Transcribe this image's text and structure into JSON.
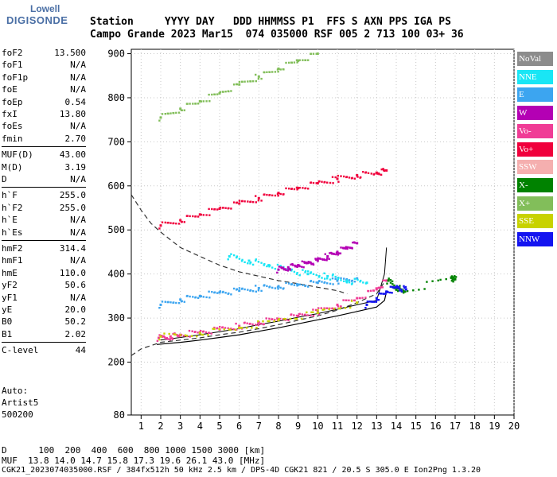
{
  "logo": {
    "brand_top": "Lowell",
    "brand_bottom": "DIGISONDE"
  },
  "header": {
    "line1": "Station     YYYY DAY   DDD HHMMSS P1  FFS S AXN PPS IGA PS",
    "line2": "Campo Grande 2023 Mar15  074 035000 RSF 005 2 713 100 03+ 36"
  },
  "params": [
    {
      "label": "foF2",
      "value": "13.500"
    },
    {
      "label": "foF1",
      "value": "N/A"
    },
    {
      "label": "foF1p",
      "value": "N/A"
    },
    {
      "label": "foE",
      "value": "N/A"
    },
    {
      "label": "foEp",
      "value": "0.54"
    },
    {
      "label": "fxI",
      "value": "13.80"
    },
    {
      "label": "foEs",
      "value": "N/A"
    },
    {
      "label": "fmin",
      "value": "2.70"
    },
    {
      "label": "MUF(D)",
      "value": "43.00"
    },
    {
      "label": "M(D)",
      "value": "3.19"
    },
    {
      "label": "D",
      "value": "N/A"
    },
    {
      "label": "h`F",
      "value": "255.0"
    },
    {
      "label": "h`F2",
      "value": "255.0"
    },
    {
      "label": "h`E",
      "value": "N/A"
    },
    {
      "label": "h`Es",
      "value": "N/A"
    },
    {
      "label": "hmF2",
      "value": "314.4"
    },
    {
      "label": "hmF1",
      "value": "N/A"
    },
    {
      "label": "hmE",
      "value": "110.0"
    },
    {
      "label": "yF2",
      "value": "50.6"
    },
    {
      "label": "yF1",
      "value": "N/A"
    },
    {
      "label": "yE",
      "value": "20.0"
    },
    {
      "label": "B0",
      "value": "50.2"
    },
    {
      "label": "B1",
      "value": "2.02"
    },
    {
      "label": "C-level",
      "value": "44"
    }
  ],
  "auto": {
    "l1": "Auto:",
    "l2": "Artist5",
    "l3": "500200"
  },
  "footer": {
    "d_line": "D      100  200  400  600  800 1000 1500 3000 [km]",
    "muf_line": "MUF  13.8 14.0 14.7 15.8 17.3 19.6 26.1 43.0 [MHz]",
    "file_line": "CGK21_2023074035000.RSF / 384fx512h 50 kHz 2.5 km / DPS-4D CGK21 821 / 20.5 S 305.0 E Ion2Png 1.3.20"
  },
  "legend": [
    {
      "label": "NoVal",
      "color": "#8c8c8c"
    },
    {
      "label": "NNE",
      "color": "#19e6f5"
    },
    {
      "label": "E",
      "color": "#3ca5f0"
    },
    {
      "label": "W",
      "color": "#b400b4"
    },
    {
      "label": "Vo-",
      "color": "#f03c96"
    },
    {
      "label": "Vo+",
      "color": "#f0003c"
    },
    {
      "label": "SSW",
      "color": "#f5afaf"
    },
    {
      "label": "X-",
      "color": "#008200"
    },
    {
      "label": "X+",
      "color": "#82be5a"
    },
    {
      "label": "SSE",
      "color": "#c8d200"
    },
    {
      "label": "NNW",
      "color": "#1414f0"
    }
  ],
  "chart_data": {
    "type": "scatter",
    "title": "",
    "xlabel": "",
    "ylabel": "",
    "xlim": [
      0.5,
      20
    ],
    "ylim": [
      80,
      910
    ],
    "y_ticks": [
      80,
      200,
      300,
      400,
      500,
      600,
      700,
      800,
      900
    ],
    "x_ticks": [
      1,
      2,
      3,
      4,
      5,
      6,
      7,
      8,
      9,
      10,
      11,
      12,
      13,
      14,
      15,
      16,
      17,
      18,
      19,
      20
    ],
    "series": [
      {
        "name": "Vo-",
        "color": "#f03c96",
        "x": [
          1.9,
          2.5,
          3.0,
          4.0,
          5.0,
          6.0,
          7.0,
          8.0,
          9.0,
          10.0,
          11.0,
          12.0,
          13.0,
          13.5
        ],
        "y": [
          255,
          258,
          262,
          268,
          274,
          282,
          290,
          298,
          305,
          315,
          330,
          345,
          365,
          385
        ]
      },
      {
        "name": "E",
        "color": "#3ca5f0",
        "x": [
          2.0,
          3.0,
          4.0,
          5.0,
          6.0,
          7.0,
          8.0,
          9.0,
          10.0,
          11.0,
          12.0
        ],
        "y": [
          330,
          342,
          350,
          358,
          362,
          368,
          372,
          376,
          380,
          385,
          390
        ]
      },
      {
        "name": "NNE",
        "color": "#19e6f5",
        "x": [
          5.5,
          6.5,
          7.5,
          8.5,
          9.5,
          10.5,
          11.5,
          12.5
        ],
        "y": [
          440,
          430,
          420,
          410,
          400,
          395,
          385,
          380
        ]
      },
      {
        "name": "W",
        "color": "#b400b4",
        "x": [
          8.0,
          8.5,
          9.0,
          9.5,
          10.0,
          10.5,
          11.0,
          11.5,
          12.0
        ],
        "y": [
          410,
          415,
          420,
          425,
          430,
          440,
          450,
          460,
          470
        ]
      },
      {
        "name": "X-",
        "color": "#008200",
        "x": [
          13.6,
          14.0,
          14.4,
          16.8,
          17.0
        ],
        "y": [
          385,
          370,
          360,
          392,
          388
        ]
      },
      {
        "name": "NNW",
        "color": "#1414f0",
        "x": [
          12.5,
          13.0,
          13.5,
          14.0,
          14.5
        ],
        "y": [
          330,
          345,
          360,
          370,
          365
        ]
      },
      {
        "name": "SSE",
        "color": "#c8d200",
        "x": [
          2.0,
          4.0,
          6.0,
          8.0,
          10.0,
          12.0
        ],
        "y": [
          258,
          266,
          278,
          295,
          312,
          335
        ]
      },
      {
        "name": "Vo+",
        "color": "#f0003c",
        "x": [
          2.0,
          3.0,
          4.0,
          5.0,
          6.0,
          7.0,
          8.0,
          9.0,
          10.0,
          11.0,
          12.0,
          13.0,
          13.5
        ],
        "y": [
          510,
          522,
          535,
          548,
          560,
          572,
          584,
          595,
          606,
          616,
          624,
          630,
          635
        ]
      },
      {
        "name": "X+",
        "color": "#82be5a",
        "x": [
          2.0,
          3.0,
          4.0,
          5.0,
          6.0,
          7.0,
          8.0,
          9.0,
          10.0
        ],
        "y": [
          755,
          775,
          792,
          810,
          830,
          848,
          866,
          884,
          900
        ]
      }
    ],
    "curves": {
      "profile": {
        "x": [
          1.8,
          3,
          4,
          5,
          6,
          7,
          8,
          9,
          10,
          11,
          12,
          13,
          13.4,
          13.5
        ],
        "y": [
          240,
          245,
          250,
          256,
          262,
          270,
          278,
          287,
          296,
          305,
          315,
          325,
          340,
          360
        ]
      },
      "trace": {
        "x": [
          2.0,
          3,
          4,
          5,
          6,
          7,
          8,
          9,
          10,
          11,
          12,
          13,
          13.4,
          13.5
        ],
        "y": [
          250,
          256,
          262,
          269,
          276,
          285,
          293,
          302,
          310,
          320,
          330,
          340,
          400,
          460
        ]
      },
      "dashed_upper": {
        "x": [
          0.5,
          1,
          1.5,
          2,
          3,
          4,
          5,
          6,
          7,
          8,
          9,
          10,
          11,
          11.5
        ],
        "y": [
          580,
          545,
          515,
          495,
          460,
          440,
          420,
          405,
          395,
          385,
          378,
          370,
          362,
          355
        ]
      },
      "dashed_lower": {
        "x": [
          0.5,
          1,
          2,
          3,
          4,
          5,
          6,
          7,
          8,
          9,
          10,
          11,
          12,
          13,
          13.4
        ],
        "y": [
          215,
          230,
          245,
          250,
          255,
          262,
          268,
          276,
          285,
          295,
          305,
          318,
          335,
          355,
          382
        ]
      }
    }
  }
}
